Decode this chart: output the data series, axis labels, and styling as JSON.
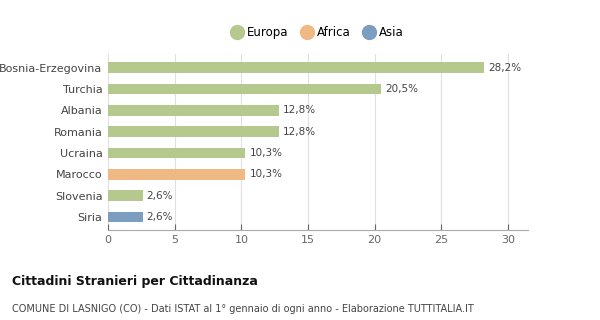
{
  "categories": [
    "Bosnia-Erzegovina",
    "Turchia",
    "Albania",
    "Romania",
    "Ucraina",
    "Marocco",
    "Slovenia",
    "Siria"
  ],
  "values": [
    28.2,
    20.5,
    12.8,
    12.8,
    10.3,
    10.3,
    2.6,
    2.6
  ],
  "colors": [
    "#b5c98e",
    "#b5c98e",
    "#b5c98e",
    "#b5c98e",
    "#b5c98e",
    "#f0b984",
    "#b5c98e",
    "#7b9dc0"
  ],
  "labels": [
    "28,2%",
    "20,5%",
    "12,8%",
    "12,8%",
    "10,3%",
    "10,3%",
    "2,6%",
    "2,6%"
  ],
  "xlim": [
    0,
    31.5
  ],
  "xticks": [
    0,
    5,
    10,
    15,
    20,
    25,
    30
  ],
  "legend_items": [
    {
      "label": "Europa",
      "color": "#b5c98e"
    },
    {
      "label": "Africa",
      "color": "#f0b984"
    },
    {
      "label": "Asia",
      "color": "#7b9dc0"
    }
  ],
  "title": "Cittadini Stranieri per Cittadinanza",
  "subtitle": "COMUNE DI LASNIGO (CO) - Dati ISTAT al 1° gennaio di ogni anno - Elaborazione TUTTITALIA.IT",
  "bg_color": "#ffffff",
  "bar_height": 0.5
}
